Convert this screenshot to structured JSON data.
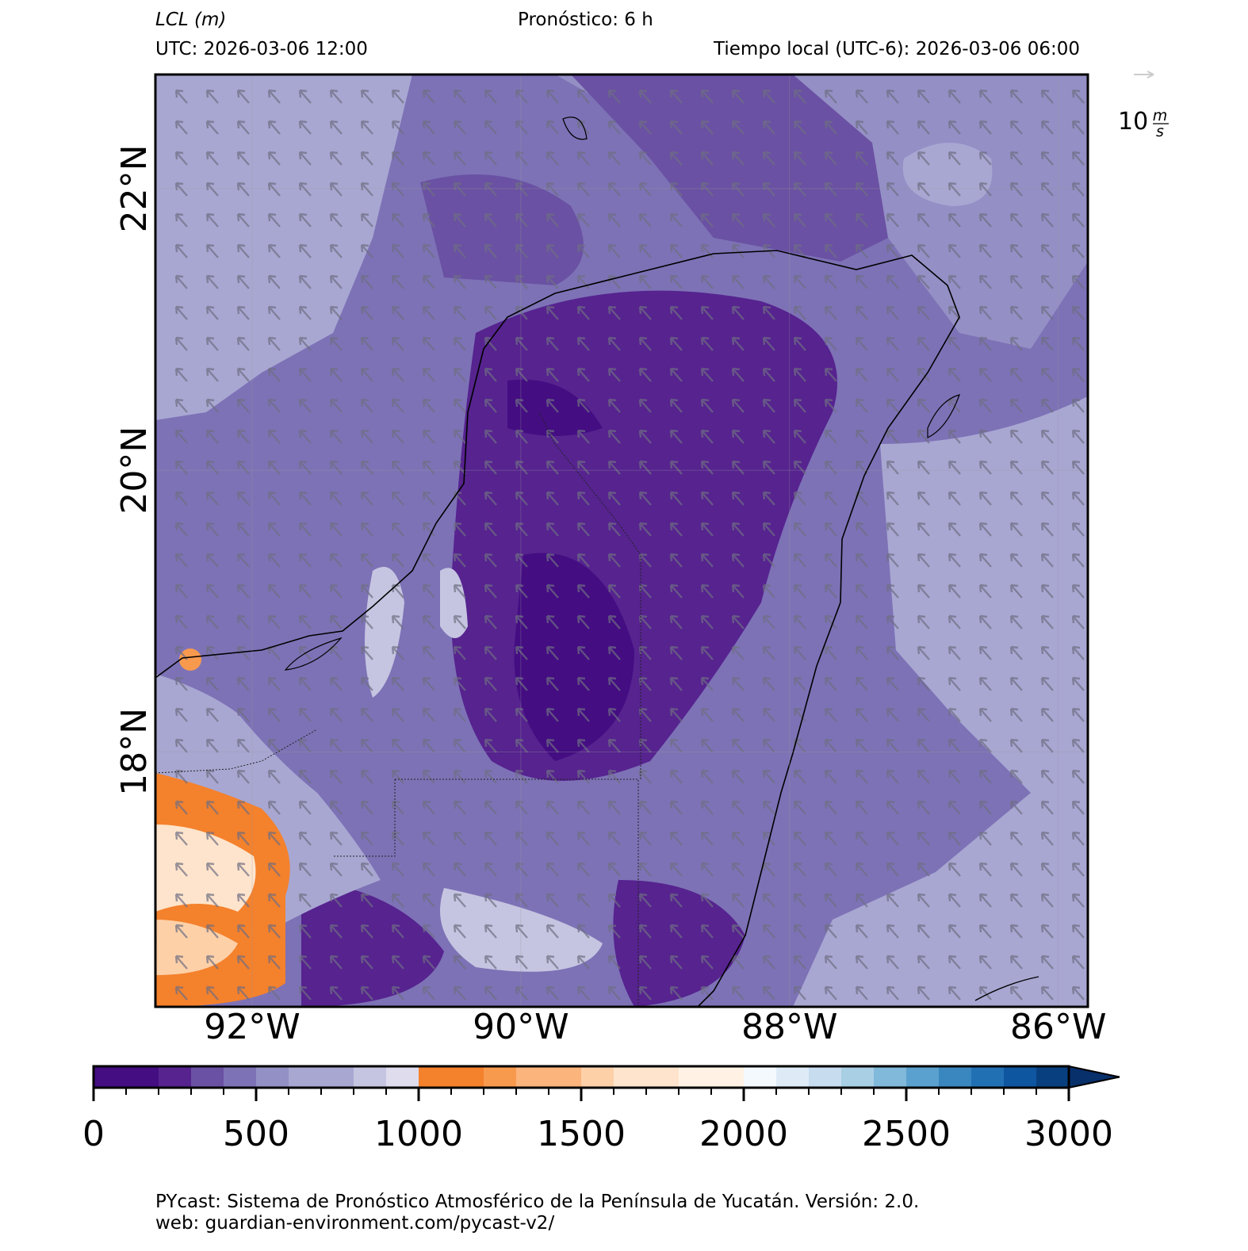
{
  "header": {
    "title": "LCL (m)",
    "forecast": "Pronóstico: 6 h",
    "utc": "UTC:  2026-03-06 12:00",
    "local_time": "Tiempo local (UTC-6): 2026-03-06 06:00"
  },
  "map": {
    "lon_range": [
      -92.72,
      -85.78
    ],
    "lat_range": [
      16.19,
      22.81
    ],
    "lon_ticks": [
      {
        "value": -92,
        "label": "92°W"
      },
      {
        "value": -90,
        "label": "90°W"
      },
      {
        "value": -88,
        "label": "88°W"
      },
      {
        "value": -86,
        "label": "86°W"
      }
    ],
    "lat_ticks": [
      {
        "value": 22,
        "label": "22°N"
      },
      {
        "value": 20,
        "label": "20°N"
      },
      {
        "value": 18,
        "label": "18°N"
      }
    ]
  },
  "quiver_key": {
    "value": 10,
    "numerator": "m",
    "denominator": "s"
  },
  "colorbar": {
    "range": [
      0,
      3000
    ],
    "ticks": [
      0,
      500,
      1000,
      1500,
      2000,
      2500,
      3000
    ],
    "minor_ticks": [
      0,
      100,
      200,
      300,
      400,
      500,
      600,
      700,
      800,
      900,
      1000,
      1100,
      1200,
      1300,
      1400,
      1500,
      1600,
      1700,
      1800,
      1900,
      2000,
      2100,
      2200,
      2300,
      2400,
      2500,
      2600,
      2700,
      2800,
      2900,
      3000
    ],
    "levels": [
      0,
      200,
      300,
      400,
      500,
      600,
      800,
      900,
      1000,
      1200,
      1300,
      1500,
      1600,
      1800,
      2000,
      2100,
      2200,
      2300,
      2400,
      2500,
      2600,
      2700,
      2800,
      2900,
      3000
    ],
    "colors": [
      "#440d82",
      "#56238f",
      "#6a51a3",
      "#7d72b6",
      "#9390c5",
      "#a8a7d2",
      "#c5c5e1",
      "#dedced",
      "#f4812c",
      "#f89a4e",
      "#fbb47c",
      "#fdd0a8",
      "#fee4cc",
      "#fff2e4",
      "#f4f9fe",
      "#deebf7",
      "#c7dcef",
      "#a8cfe4",
      "#80b9da",
      "#5aa1cf",
      "#3a87c0",
      "#2270b4",
      "#0f56a0",
      "#08407f"
    ],
    "extend_color": "#08306b"
  },
  "footer": {
    "line1": "PYcast: Sistema de Pronóstico Atmosférico de la Península de Yucatán. Versión: 2.0.",
    "line2": "web: guardian-environment.com/pycast-v2/"
  }
}
